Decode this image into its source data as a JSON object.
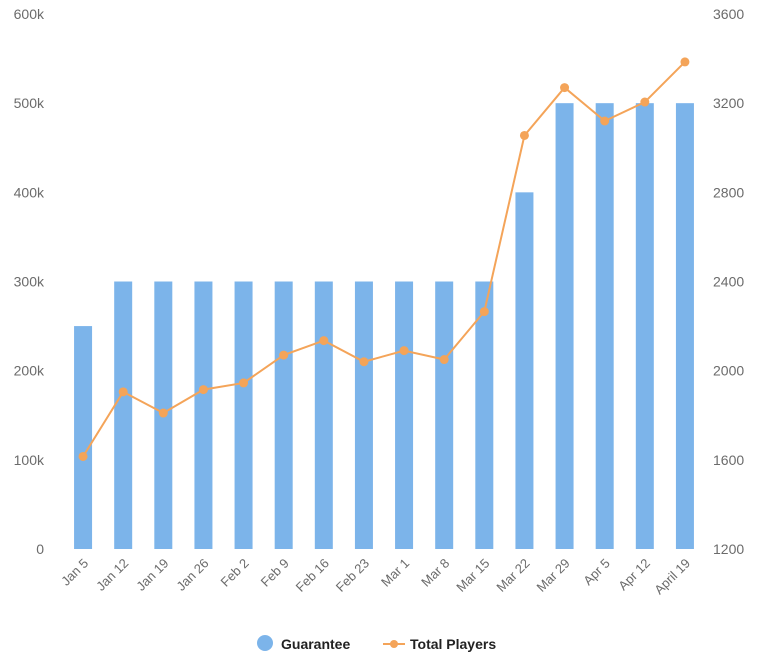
{
  "chart_data": {
    "type": "bar",
    "categories": [
      "Jan 5",
      "Jan 12",
      "Jan 19",
      "Jan 26",
      "Feb 2",
      "Feb 9",
      "Feb 16",
      "Feb 23",
      "Mar 1",
      "Mar 8",
      "Mar 15",
      "Mar 22",
      "Mar 29",
      "Apr 5",
      "Apr 12",
      "April 19"
    ],
    "series": [
      {
        "name": "Guarantee",
        "type": "bar",
        "axis": "left",
        "color": "#7cb4ea",
        "values": [
          250000,
          300000,
          300000,
          300000,
          300000,
          300000,
          300000,
          300000,
          300000,
          300000,
          300000,
          400000,
          500000,
          500000,
          500000,
          500000
        ]
      },
      {
        "name": "Total Players",
        "type": "line",
        "axis": "right",
        "color": "#f4a459",
        "values": [
          1615,
          1905,
          1810,
          1915,
          1945,
          2070,
          2135,
          2040,
          2090,
          2050,
          2265,
          3055,
          3270,
          3120,
          3205,
          3385
        ]
      }
    ],
    "left_axis": {
      "ylim": [
        0,
        600000
      ],
      "ticks": [
        "0",
        "100k",
        "200k",
        "300k",
        "400k",
        "500k",
        "600k"
      ]
    },
    "right_axis": {
      "ylim": [
        1200,
        3600
      ],
      "ticks": [
        "1200",
        "1600",
        "2000",
        "2400",
        "2800",
        "3200",
        "3600"
      ]
    },
    "grid": false,
    "legend": {
      "placement": "bottom-center",
      "items": [
        "Guarantee",
        "Total Players"
      ]
    },
    "title": "",
    "xlabel": "",
    "ylabel": ""
  }
}
